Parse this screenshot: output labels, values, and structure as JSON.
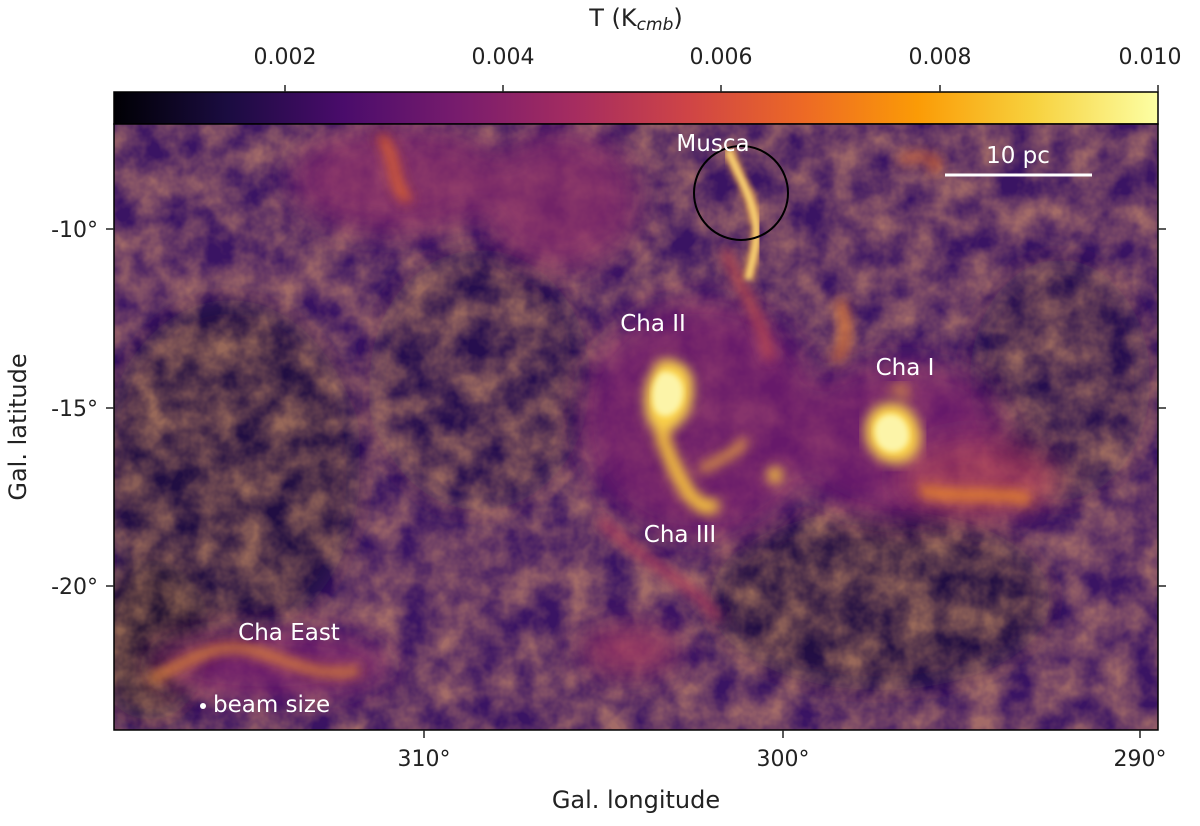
{
  "colorbar": {
    "label_main": "T (K",
    "label_sub": "cmb",
    "label_close": ")",
    "ticks": [
      "0.002",
      "0.004",
      "0.006",
      "0.008",
      "0.010"
    ],
    "colors": [
      "#000004",
      "#1b0c41",
      "#4a0c6b",
      "#781c6d",
      "#a52c60",
      "#cf4446",
      "#ed6925",
      "#fb9b06",
      "#f7d13d",
      "#fcffa4"
    ]
  },
  "axes": {
    "xlabel": "Gal. longitude",
    "ylabel": "Gal. latitude",
    "xticks": [
      "310°",
      "300°",
      "290°"
    ],
    "yticks": [
      "-10°",
      "-15°",
      "-20°"
    ]
  },
  "scalebar": {
    "label": "10 pc"
  },
  "regions": {
    "musca": "Musca",
    "cha_ii": "Cha II",
    "cha_i": "Cha I",
    "cha_iii": "Cha III",
    "cha_east": "Cha East"
  },
  "beam": {
    "label": "beam size"
  }
}
